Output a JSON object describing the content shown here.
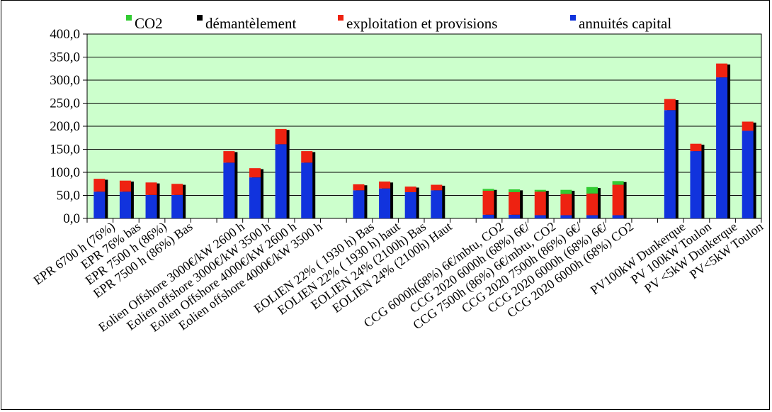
{
  "chart_data": {
    "type": "bar",
    "stacked": true,
    "title": "",
    "xlabel": "",
    "ylabel": "",
    "ylim": [
      0,
      400
    ],
    "y_ticks": [
      "0,0",
      "50,0",
      "100,0",
      "150,0",
      "200,0",
      "250,0",
      "300,0",
      "350,0",
      "400,0"
    ],
    "grid": true,
    "legend_position": "top",
    "plot_background": "#ccffcc",
    "legend": [
      {
        "label": "CO2",
        "color": "#33cc33"
      },
      {
        "label": "démantèlement",
        "color": "#000000"
      },
      {
        "label": "exploitation et provisions",
        "color": "#ee2211"
      },
      {
        "label": "annuités capital",
        "color": "#1133dd"
      }
    ],
    "categories": [
      "EPR 6700 h (76%)",
      "EPR 76% bas",
      "EPR 7500 h (86%)",
      "EPR 7500 h (86%) Bas",
      "",
      "Eolien Offshore 3000€/kW 2600 h",
      "Eolien offshore 3000€/kW 3500 h",
      "Eolien Offshore 4000€/kW 2600 h",
      "Eolien offshore 4000€/kW 3500 h",
      "",
      "EOLIEN  22% ( 1930 h) Bas",
      "EOLIEN  22% ( 1930 h) haut",
      "EOLIEN  24% (2100h) Bas",
      "EOLIEN  24% (2100h) Haut",
      "",
      "CCG  6000h(68%)  6€/mbtu, CO2",
      "CCG  2020 6000h (68%) 6€/",
      "CCG 7500h (86%) 6€/mbtu, CO2",
      "CCG  2020 7500h (86%)   6€/",
      "CCG  2020 6000h (68%)   6€/",
      "CCG  2020 6000h (68%)  CO2",
      "",
      "PV100kW  Dunkerque",
      "PV 100kW Toulon",
      "PV <5kW Dunkerque",
      "PV<5kW Toulon"
    ],
    "series": [
      {
        "name": "annuités capital",
        "color": "#1133dd",
        "values": [
          58,
          58,
          51,
          51,
          null,
          121,
          89,
          161,
          121,
          null,
          61,
          65,
          57,
          61,
          null,
          8,
          8,
          7,
          7,
          7,
          7,
          null,
          235,
          146,
          306,
          190
        ]
      },
      {
        "name": "exploitation et provisions",
        "color": "#ee2211",
        "values": [
          28,
          24,
          27,
          24,
          null,
          25,
          20,
          33,
          25,
          null,
          13,
          15,
          12,
          12,
          null,
          52,
          49,
          51,
          46,
          47,
          66,
          null,
          24,
          16,
          30,
          20
        ]
      },
      {
        "name": "CO2",
        "color": "#33cc33",
        "values": [
          0,
          0,
          0,
          0,
          null,
          0,
          0,
          0,
          0,
          null,
          0,
          0,
          0,
          0,
          null,
          4,
          6,
          4,
          9,
          14,
          8,
          null,
          0,
          0,
          0,
          0
        ]
      },
      {
        "name": "démantèlement",
        "color": "#000000",
        "values": [
          1,
          1,
          1,
          1,
          null,
          1,
          1,
          1,
          1,
          null,
          1,
          1,
          1,
          1,
          null,
          1,
          1,
          1,
          1,
          1,
          1,
          null,
          1,
          1,
          1,
          1
        ]
      }
    ]
  }
}
